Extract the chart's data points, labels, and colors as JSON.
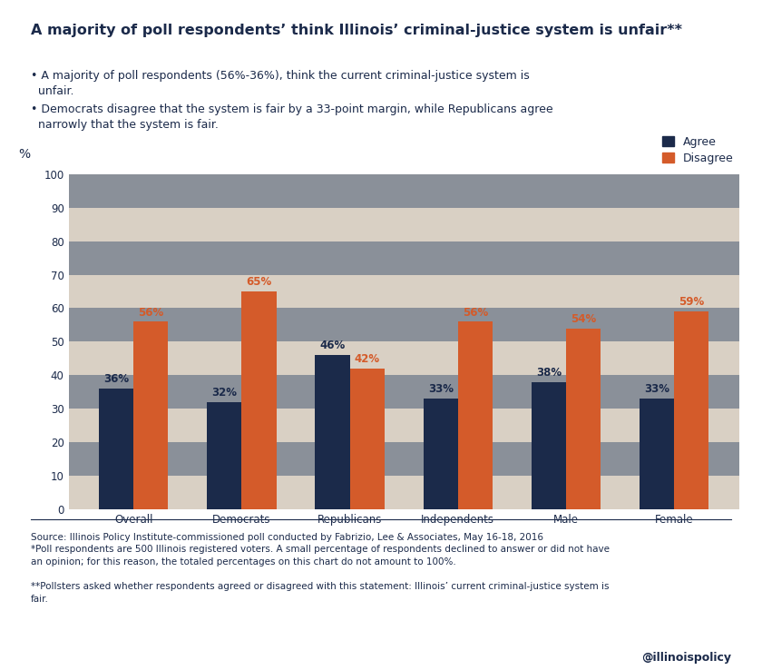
{
  "title": "A majority of poll respondentsʼ think Illinoisʼ criminal-justice system is unfair**",
  "bullet1": "• A majority of poll respondents (56%-36%), think the current criminal-justice system is\n  unfair.",
  "bullet2": "• Democrats disagree that the system is fair by a 33-point margin, while Republicans agree\n  narrowly that the system is fair.",
  "categories": [
    "Overall",
    "Democrats",
    "Republicans",
    "Independents",
    "Male",
    "Female"
  ],
  "agree_values": [
    36,
    32,
    46,
    33,
    38,
    33
  ],
  "disagree_values": [
    56,
    65,
    42,
    56,
    54,
    59
  ],
  "agree_color": "#1b2a4a",
  "disagree_color": "#d45b2a",
  "ylabel": "%",
  "ylim": [
    0,
    100
  ],
  "yticks": [
    0,
    10,
    20,
    30,
    40,
    50,
    60,
    70,
    80,
    90,
    100
  ],
  "legend_agree": "Agree",
  "legend_disagree": "Disagree",
  "source_text": "Source: Illinois Policy Institute-commissioned poll conducted by Fabrizio, Lee & Associates, May 16-18, 2016\n*Poll respondents are 500 Illinois registered voters. A small percentage of respondents declined to answer or did not have\nan opinion; for this reason, the totaled percentages on this chart do not amount to 100%.\n\n**Pollsters asked whether respondents agreed or disagreed with this statement: Illinois’ current criminal-justice system is\nfair.",
  "handle_text": "@illinoispolicy",
  "bg_color": "#ffffff",
  "title_color": "#1b2a4a",
  "text_color": "#1b2a4a",
  "bar_width": 0.32,
  "stripe_colors": [
    "#d9d0c4",
    "#8a9099"
  ],
  "title_fontsize": 11.5,
  "label_fontsize": 8.5,
  "tick_fontsize": 8.5,
  "source_fontsize": 7.5,
  "handle_fontsize": 9
}
